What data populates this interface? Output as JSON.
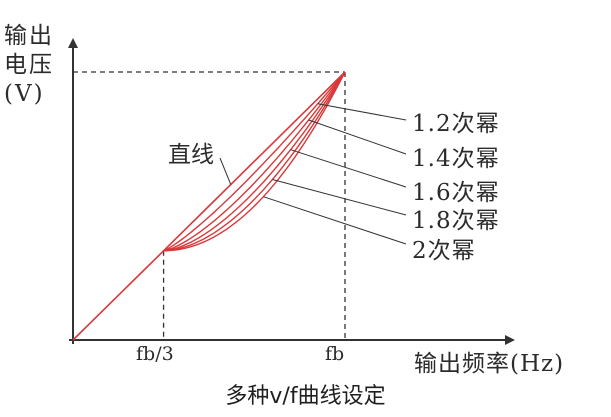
{
  "chart_data": {
    "type": "line",
    "title": "",
    "ylabel_lines": [
      "输出",
      "电压",
      "(V)"
    ],
    "xlabel": "输出频率(Hz)",
    "x_ticks": [
      "fb/3",
      "fb"
    ],
    "x": [
      0,
      0.1,
      0.2,
      0.333,
      0.4,
      0.5,
      0.6,
      0.7,
      0.8,
      0.9,
      1.0
    ],
    "straight_series": {
      "name": "直线",
      "values": [
        0,
        0.1,
        0.2,
        0.333,
        0.4,
        0.5,
        0.6,
        0.7,
        0.8,
        0.9,
        1.0
      ]
    },
    "series": [
      {
        "name": "1.2次幂",
        "power": 1.2
      },
      {
        "name": "1.4次幂",
        "power": 1.4
      },
      {
        "name": "1.6次幂",
        "power": 1.6
      },
      {
        "name": "1.8次幂",
        "power": 1.8
      },
      {
        "name": "2次幂",
        "power": 2.0
      }
    ],
    "curve_range": [
      0.333,
      1.0
    ],
    "xlim": [
      0,
      1.2
    ],
    "ylim": [
      0,
      1.0
    ],
    "grid": false,
    "colors": {
      "curves": "#d9383a",
      "axes": "#333333",
      "guides": "#333333"
    }
  },
  "caption": "多种v/f曲线设定"
}
